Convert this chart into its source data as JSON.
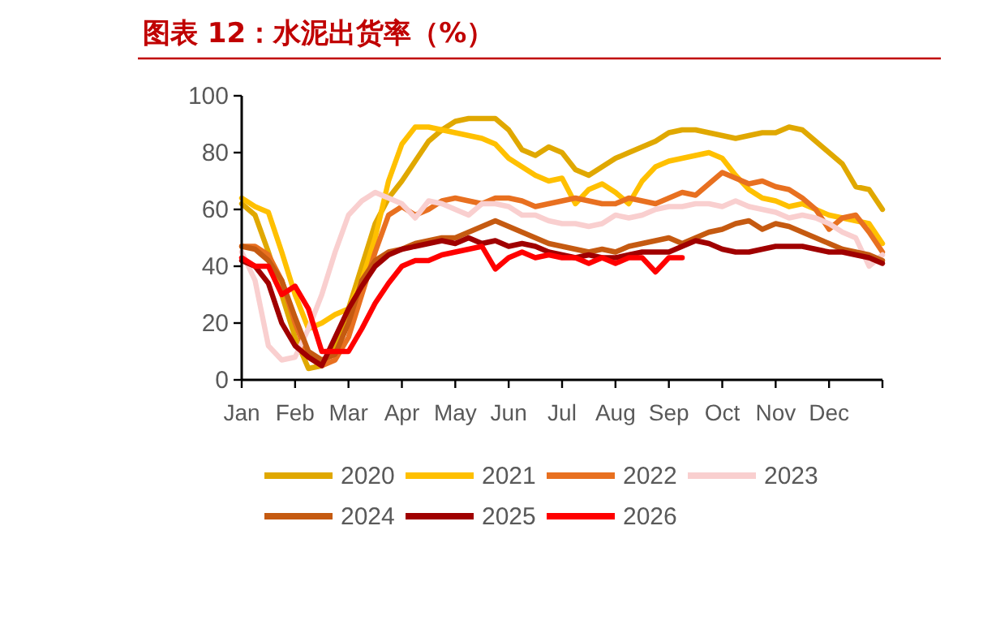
{
  "chart_data": {
    "type": "line",
    "title": "图表 12：水泥出货率（%）",
    "categories": [
      "Jan",
      null,
      null,
      null,
      "Feb",
      null,
      null,
      null,
      "Mar",
      null,
      null,
      null,
      "Apr",
      null,
      null,
      null,
      "May",
      null,
      null,
      null,
      "Jun",
      null,
      null,
      null,
      "Jul",
      null,
      null,
      null,
      "Aug",
      null,
      null,
      null,
      "Sep",
      null,
      null,
      null,
      "Oct",
      null,
      null,
      null,
      "Nov",
      null,
      null,
      null,
      "Dec",
      null,
      null,
      null,
      null
    ],
    "ylim": [
      0,
      100
    ],
    "yticks": [
      0,
      20,
      40,
      60,
      80,
      100
    ],
    "grid": false,
    "legend": "bottom",
    "marker": "none",
    "line_style": "solid",
    "series": [
      {
        "name": "2020",
        "color": "#e0a800",
        "values": [
          62,
          58,
          45,
          30,
          15,
          4,
          5,
          12,
          25,
          40,
          55,
          64,
          70,
          77,
          84,
          88,
          91,
          92,
          92,
          92,
          88,
          81,
          79,
          82,
          80,
          74,
          72,
          75,
          78,
          80,
          82,
          84,
          87,
          88,
          88,
          87,
          86,
          85,
          86,
          87,
          87,
          89,
          88,
          84,
          80,
          76,
          68,
          67,
          60
        ]
      },
      {
        "name": "2021",
        "color": "#ffc000",
        "values": [
          64,
          61,
          59,
          45,
          30,
          18,
          20,
          23,
          25,
          35,
          50,
          70,
          83,
          89,
          89,
          88,
          87,
          86,
          85,
          83,
          78,
          75,
          72,
          70,
          71,
          62,
          67,
          69,
          66,
          62,
          70,
          75,
          77,
          78,
          79,
          80,
          78,
          72,
          67,
          64,
          63,
          61,
          62,
          60,
          58,
          57,
          56,
          55,
          48
        ]
      },
      {
        "name": "2022",
        "color": "#e87020",
        "values": [
          47,
          47,
          44,
          35,
          20,
          8,
          5,
          7,
          15,
          30,
          45,
          58,
          61,
          58,
          60,
          63,
          64,
          63,
          62,
          64,
          64,
          63,
          61,
          62,
          63,
          64,
          63,
          62,
          62,
          64,
          63,
          62,
          64,
          66,
          65,
          69,
          73,
          71,
          69,
          70,
          68,
          67,
          64,
          60,
          53,
          57,
          58,
          52,
          45
        ]
      },
      {
        "name": "2023",
        "color": "#f9cfcf",
        "values": [
          45,
          35,
          12,
          7,
          8,
          18,
          30,
          45,
          58,
          63,
          66,
          64,
          62,
          57,
          63,
          62,
          60,
          58,
          62,
          62,
          61,
          58,
          58,
          56,
          55,
          55,
          54,
          55,
          58,
          57,
          58,
          60,
          61,
          61,
          62,
          62,
          61,
          63,
          61,
          60,
          59,
          57,
          58,
          57,
          55,
          52,
          50,
          40,
          44
        ]
      },
      {
        "name": "2024",
        "color": "#c55a11",
        "values": [
          47,
          46,
          42,
          35,
          22,
          10,
          7,
          9,
          20,
          35,
          42,
          45,
          46,
          48,
          49,
          50,
          50,
          52,
          54,
          56,
          54,
          52,
          50,
          48,
          47,
          46,
          45,
          46,
          45,
          47,
          48,
          49,
          50,
          48,
          50,
          52,
          53,
          55,
          56,
          53,
          55,
          54,
          52,
          50,
          48,
          46,
          45,
          44,
          42
        ]
      },
      {
        "name": "2025",
        "color": "#a00000",
        "values": [
          42,
          40,
          34,
          20,
          12,
          8,
          5,
          15,
          25,
          33,
          40,
          44,
          46,
          47,
          48,
          49,
          48,
          50,
          48,
          49,
          47,
          48,
          47,
          45,
          44,
          43,
          44,
          43,
          43,
          44,
          45,
          45,
          45,
          47,
          49,
          48,
          46,
          45,
          45,
          46,
          47,
          47,
          47,
          46,
          45,
          45,
          44,
          43,
          41
        ]
      },
      {
        "name": "2026",
        "color": "#ff0000",
        "values": [
          43,
          40,
          40,
          30,
          33,
          25,
          10,
          10,
          10,
          18,
          27,
          34,
          40,
          42,
          42,
          44,
          45,
          46,
          47,
          39,
          43,
          45,
          43,
          44,
          43,
          43,
          41,
          43,
          41,
          43,
          43,
          38,
          43,
          43,
          null,
          null,
          null,
          null,
          null,
          null,
          null,
          null,
          null,
          null,
          null,
          null,
          null,
          null,
          null
        ]
      }
    ]
  }
}
